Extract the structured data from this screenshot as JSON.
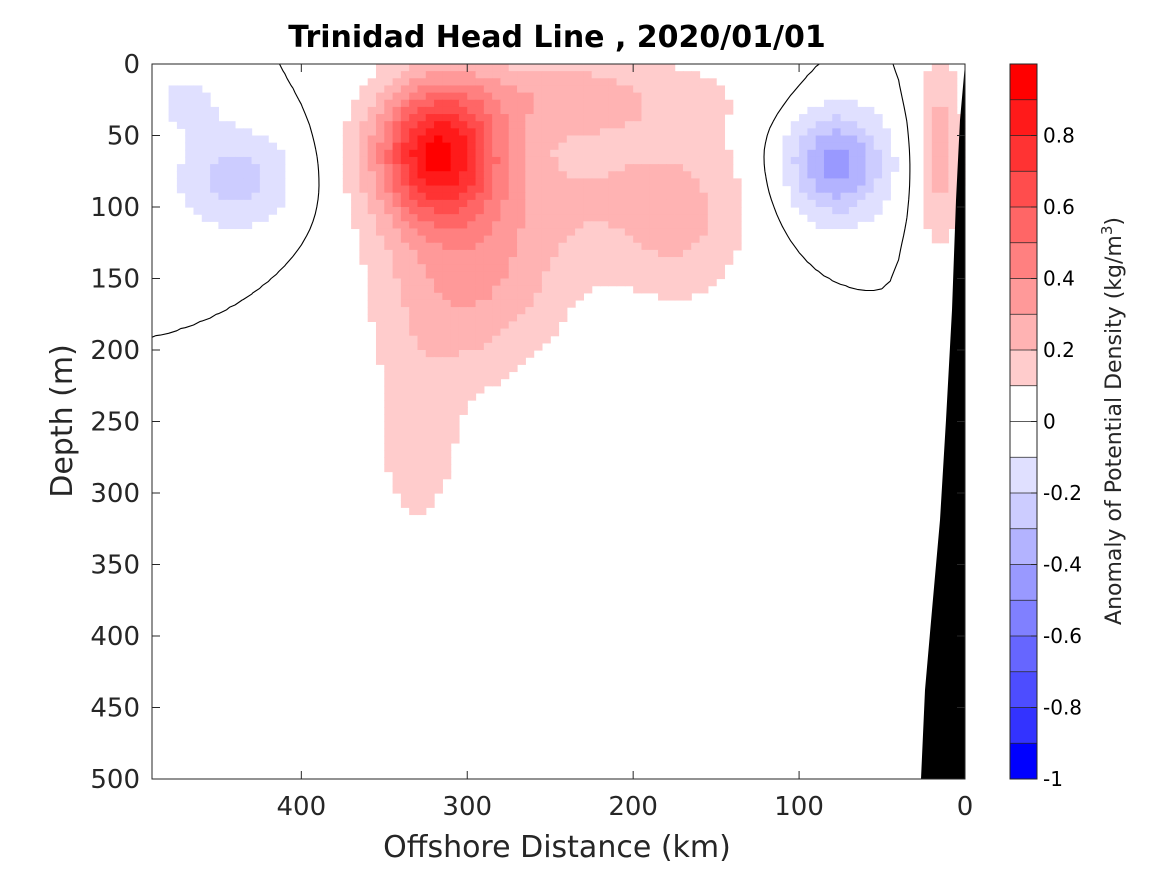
{
  "chart_data": {
    "type": "contour",
    "title": "Trinidad Head Line , 2020/01/01",
    "xlabel": "Offshore Distance (km)",
    "ylabel": "Depth (m)",
    "x_reversed": true,
    "y_reversed": true,
    "xlim": [
      490,
      0
    ],
    "ylim": [
      0,
      500
    ],
    "xticks": [
      "400",
      "300",
      "200",
      "100",
      "0"
    ],
    "yticks": [
      "0",
      "50",
      "100",
      "150",
      "200",
      "250",
      "300",
      "350",
      "400",
      "450",
      "500"
    ],
    "colorbar": {
      "label": "Anomaly of Potential Density (kg/m",
      "label_exponent": "3",
      "label_end": ")",
      "range": [
        -1,
        1
      ],
      "ticks": [
        "0.8",
        "0.6",
        "0.4",
        "0.2",
        "0",
        "-0.2",
        "-0.4",
        "-0.6",
        "-0.8",
        "-1"
      ],
      "levels": [
        {
          "lo": 0.9,
          "hi": 1.0,
          "color": "#ff0000"
        },
        {
          "lo": 0.8,
          "hi": 0.9,
          "color": "#ff1a1a"
        },
        {
          "lo": 0.7,
          "hi": 0.8,
          "color": "#ff3333"
        },
        {
          "lo": 0.6,
          "hi": 0.7,
          "color": "#ff4d4d"
        },
        {
          "lo": 0.5,
          "hi": 0.6,
          "color": "#ff6666"
        },
        {
          "lo": 0.4,
          "hi": 0.5,
          "color": "#ff8080"
        },
        {
          "lo": 0.3,
          "hi": 0.4,
          "color": "#ff9999"
        },
        {
          "lo": 0.2,
          "hi": 0.3,
          "color": "#ffb3b3"
        },
        {
          "lo": 0.1,
          "hi": 0.2,
          "color": "#ffcccc"
        },
        {
          "lo": 0.0,
          "hi": 0.1,
          "color": "#ffffff"
        },
        {
          "lo": -0.1,
          "hi": 0.0,
          "color": "#ffffff"
        },
        {
          "lo": -0.2,
          "hi": -0.1,
          "color": "#e0e0ff"
        },
        {
          "lo": -0.3,
          "hi": -0.2,
          "color": "#ccccff"
        },
        {
          "lo": -0.4,
          "hi": -0.3,
          "color": "#b3b3ff"
        },
        {
          "lo": -0.5,
          "hi": -0.4,
          "color": "#9999ff"
        },
        {
          "lo": -0.6,
          "hi": -0.5,
          "color": "#8080ff"
        },
        {
          "lo": -0.7,
          "hi": -0.6,
          "color": "#6666ff"
        },
        {
          "lo": -0.8,
          "hi": -0.7,
          "color": "#4d4dff"
        },
        {
          "lo": -0.9,
          "hi": -0.8,
          "color": "#3333ff"
        },
        {
          "lo": -1.0,
          "hi": -0.9,
          "color": "#0000ff"
        }
      ]
    },
    "features": {
      "main_anomaly": {
        "center_distance_km": 318,
        "center_depth_m": 62,
        "peak": 0.85,
        "bottom_depth_m": 365
      },
      "offshore_west_anomaly": {
        "center_distance_km": 440,
        "center_depth_m": 80,
        "min": -0.25
      },
      "nearshore_anomaly": {
        "center_distance_km": 78,
        "center_depth_m": 70,
        "min": -0.45
      },
      "coastal_anomaly": {
        "center_distance_km": 15,
        "center_depth_m": 60,
        "peak": 0.25
      }
    }
  }
}
